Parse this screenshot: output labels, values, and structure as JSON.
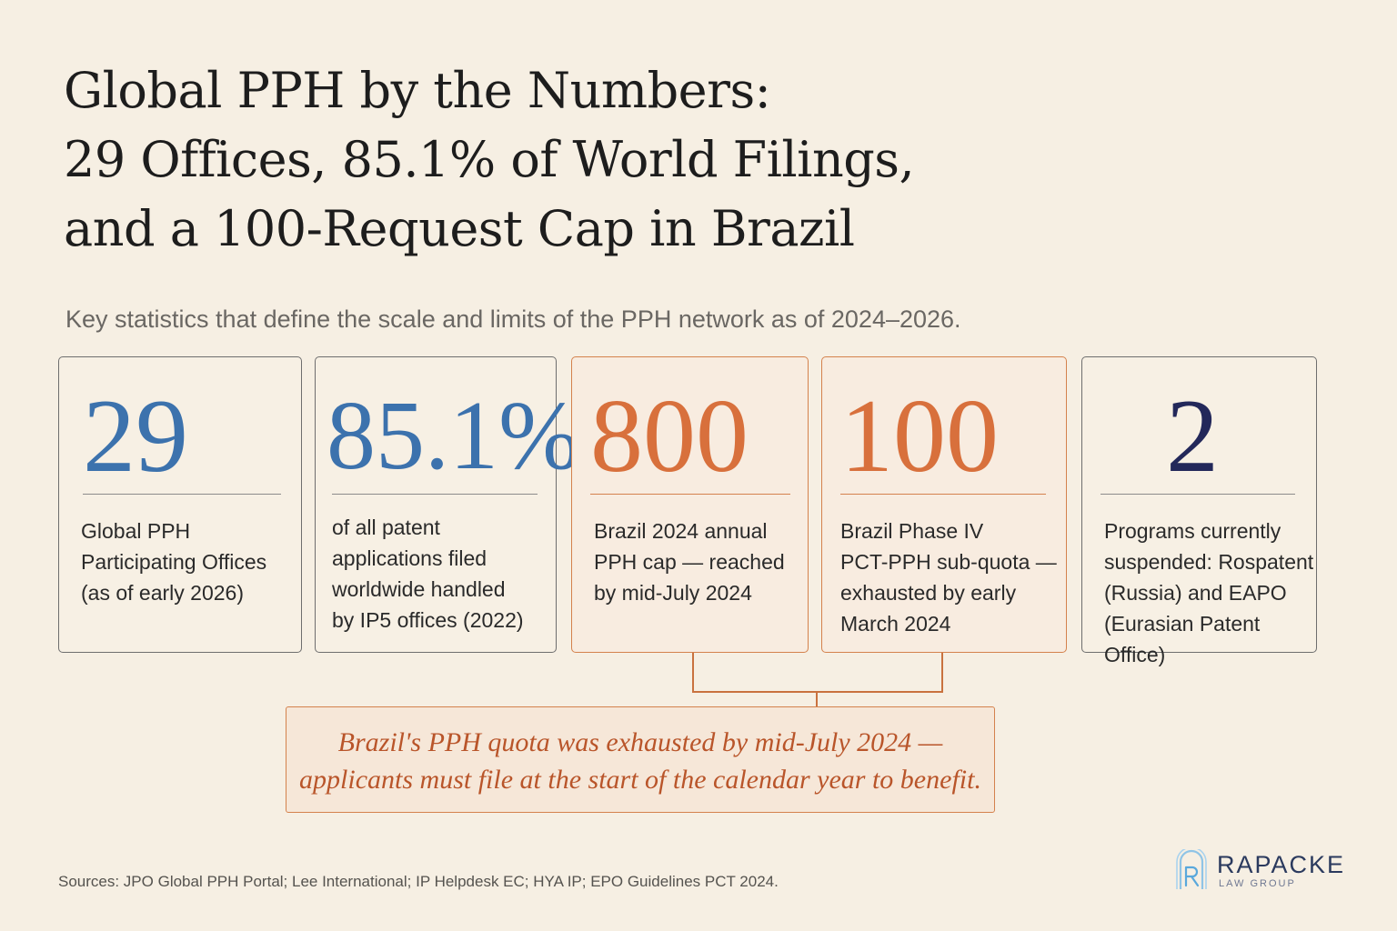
{
  "title": {
    "line1": "Global PPH by the Numbers:",
    "line2": "29 Offices, 85.1% of World Filings,",
    "line3": "and a 100-Request Cap in Brazil"
  },
  "subtitle": "Key statistics that define the scale and limits of the PPH network as of 2024–2026.",
  "colors": {
    "background": "#f6efe3",
    "blue": "#3c72ad",
    "orange": "#d8703c",
    "navy": "#23285a",
    "callout_text": "#b9552a"
  },
  "stats": [
    {
      "value": "29",
      "lines": [
        "Global PPH",
        "Participating Offices",
        "(as of early 2026)"
      ]
    },
    {
      "value": "85.1%",
      "lines": [
        "of all patent",
        "applications filed",
        "worldwide handled",
        "by IP5 offices (2022)"
      ]
    },
    {
      "value": "800",
      "lines": [
        "Brazil 2024 annual",
        "PPH cap — reached",
        "by mid-July 2024"
      ]
    },
    {
      "value": "100",
      "lines": [
        "Brazil Phase IV",
        "PCT-PPH sub-quota —",
        "exhausted by early",
        "March 2024"
      ]
    },
    {
      "value": "2",
      "lines": [
        "Programs currently",
        "suspended: Rospatent",
        "(Russia) and EAPO",
        "(Eurasian Patent Office)"
      ]
    }
  ],
  "callout": {
    "line1": "Brazil's PPH quota was exhausted by mid-July 2024 —",
    "line2": "applicants must file at the start of the calendar year to benefit."
  },
  "sources": "Sources: JPO Global PPH Portal; Lee International; IP Helpdesk EC; HYA IP; EPO Guidelines PCT 2024.",
  "logo": {
    "name": "RAPACKE",
    "sub": "LAW GROUP",
    "icon": "rapacke-r-monogram-icon"
  }
}
